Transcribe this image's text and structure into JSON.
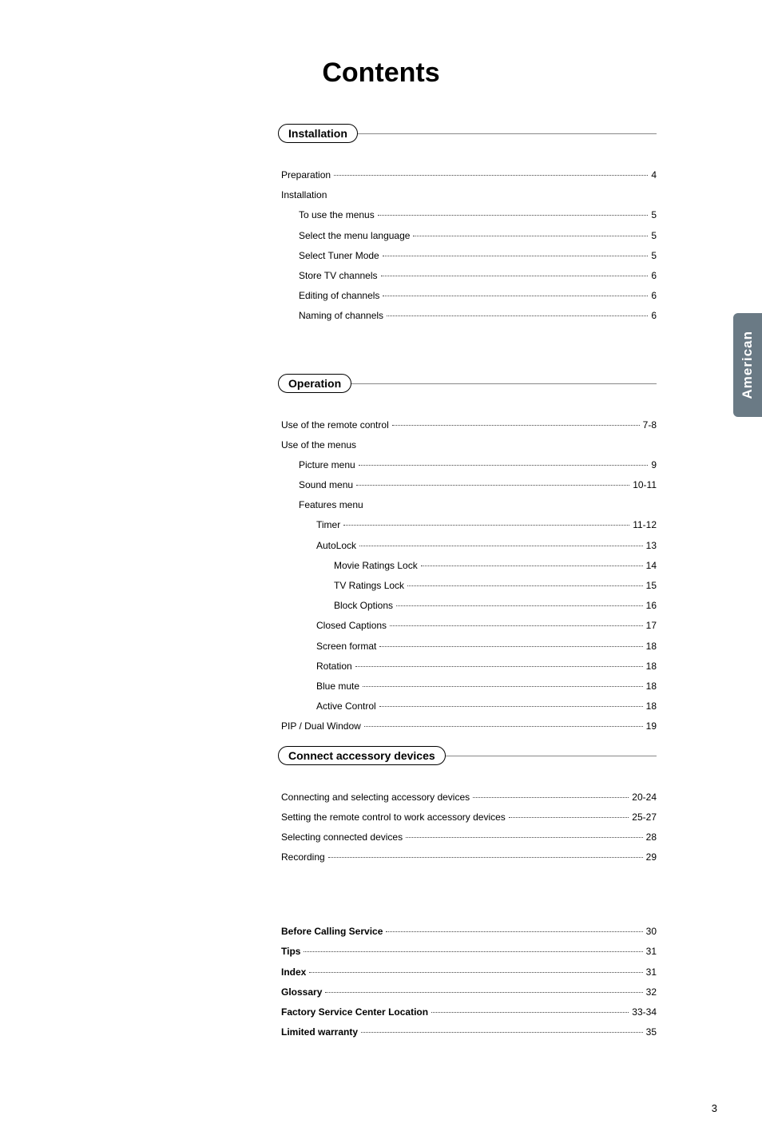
{
  "page_title": "Contents",
  "side_tab": "American",
  "page_number": "3",
  "colors": {
    "side_tab_bg": "#6a7a85",
    "side_tab_text": "#ffffff",
    "text": "#000000",
    "background": "#ffffff"
  },
  "sections": [
    {
      "title": "Installation",
      "entries": [
        {
          "label": "Preparation",
          "page": "4",
          "indent": 0
        },
        {
          "label": "Installation",
          "page": "",
          "indent": 0,
          "group": true
        },
        {
          "label": "To use the menus",
          "page": "5",
          "indent": 1
        },
        {
          "label": "Select the menu language",
          "page": "5",
          "indent": 1
        },
        {
          "label": "Select Tuner Mode",
          "page": "5",
          "indent": 1
        },
        {
          "label": "Store TV channels",
          "page": "6",
          "indent": 1
        },
        {
          "label": "Editing of channels",
          "page": "6",
          "indent": 1
        },
        {
          "label": "Naming of channels",
          "page": "6",
          "indent": 1
        }
      ]
    },
    {
      "title": "Operation",
      "entries": [
        {
          "label": "Use of the remote control",
          "page": "7-8",
          "indent": 0
        },
        {
          "label": "Use of the menus",
          "page": "",
          "indent": 0,
          "group": true
        },
        {
          "label": "Picture menu",
          "page": "9",
          "indent": 1
        },
        {
          "label": "Sound menu",
          "page": "10-11",
          "indent": 1
        },
        {
          "label": "Features menu",
          "page": "",
          "indent": 1,
          "group": true
        },
        {
          "label": "Timer",
          "page": "11-12",
          "indent": 2
        },
        {
          "label": "AutoLock",
          "page": "13",
          "indent": 2
        },
        {
          "label": "Movie Ratings Lock",
          "page": "14",
          "indent": 3
        },
        {
          "label": "TV Ratings Lock",
          "page": "15",
          "indent": 3
        },
        {
          "label": "Block Options",
          "page": "16",
          "indent": 3
        },
        {
          "label": "Closed Captions",
          "page": "17",
          "indent": 2
        },
        {
          "label": "Screen format",
          "page": "18",
          "indent": 2
        },
        {
          "label": "Rotation",
          "page": "18",
          "indent": 2
        },
        {
          "label": "Blue mute",
          "page": "18",
          "indent": 2
        },
        {
          "label": "Active Control",
          "page": "18",
          "indent": 2
        },
        {
          "label": "PIP / Dual Window",
          "page": "19",
          "indent": 0
        }
      ]
    },
    {
      "title": "Connect accessory devices",
      "entries": [
        {
          "label": "Connecting and selecting accessory devices",
          "page": "20-24",
          "indent": 0
        },
        {
          "label": "Setting the remote control to work accessory devices",
          "page": "25-27",
          "indent": 0
        },
        {
          "label": "Selecting connected devices",
          "page": "28",
          "indent": 0
        },
        {
          "label": "Recording",
          "page": "29",
          "indent": 0
        }
      ]
    }
  ],
  "bottom_entries": [
    {
      "label": "Before Calling Service",
      "page": "30"
    },
    {
      "label": "Tips",
      "page": "31"
    },
    {
      "label": "Index",
      "page": "31"
    },
    {
      "label": "Glossary",
      "page": "32"
    },
    {
      "label": "Factory Service Center Location",
      "page": "33-34"
    },
    {
      "label": "Limited warranty",
      "page": "35"
    }
  ]
}
